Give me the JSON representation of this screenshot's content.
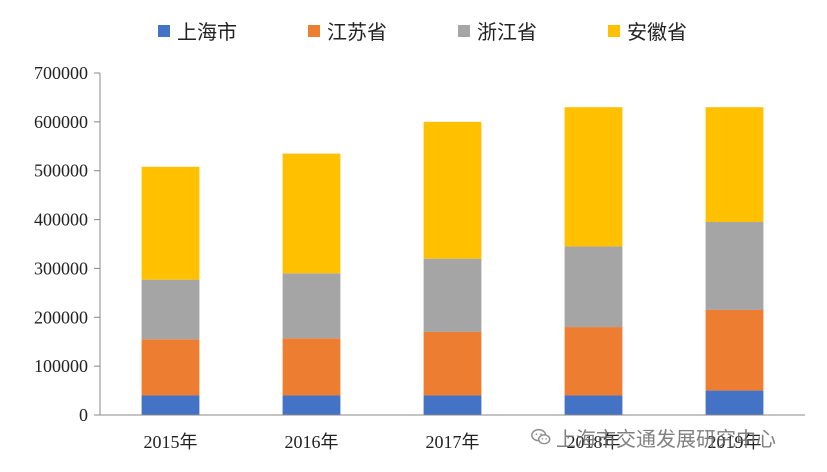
{
  "chart_data": {
    "type": "bar",
    "stacked": true,
    "categories": [
      "2015年",
      "2016年",
      "2017年",
      "2018年",
      "2019年"
    ],
    "series": [
      {
        "name": "上海市",
        "color": "#4472C4",
        "values": [
          40000,
          40000,
          40000,
          40000,
          50000
        ]
      },
      {
        "name": "江苏省",
        "color": "#ED7D31",
        "values": [
          115000,
          117000,
          130000,
          140000,
          165000
        ]
      },
      {
        "name": "浙江省",
        "color": "#A5A5A5",
        "values": [
          122000,
          133000,
          150000,
          165000,
          180000
        ]
      },
      {
        "name": "安徽省",
        "color": "#FFC000",
        "values": [
          231000,
          245000,
          280000,
          285000,
          235000
        ]
      }
    ],
    "yticks": [
      "0",
      "100000",
      "200000",
      "300000",
      "400000",
      "500000",
      "600000",
      "700000"
    ],
    "ylim": [
      0,
      700000
    ],
    "legend_position": "top",
    "grid": false
  },
  "watermark": {
    "text": "上海市交通发展研究中心",
    "icon": "wechat-icon"
  }
}
